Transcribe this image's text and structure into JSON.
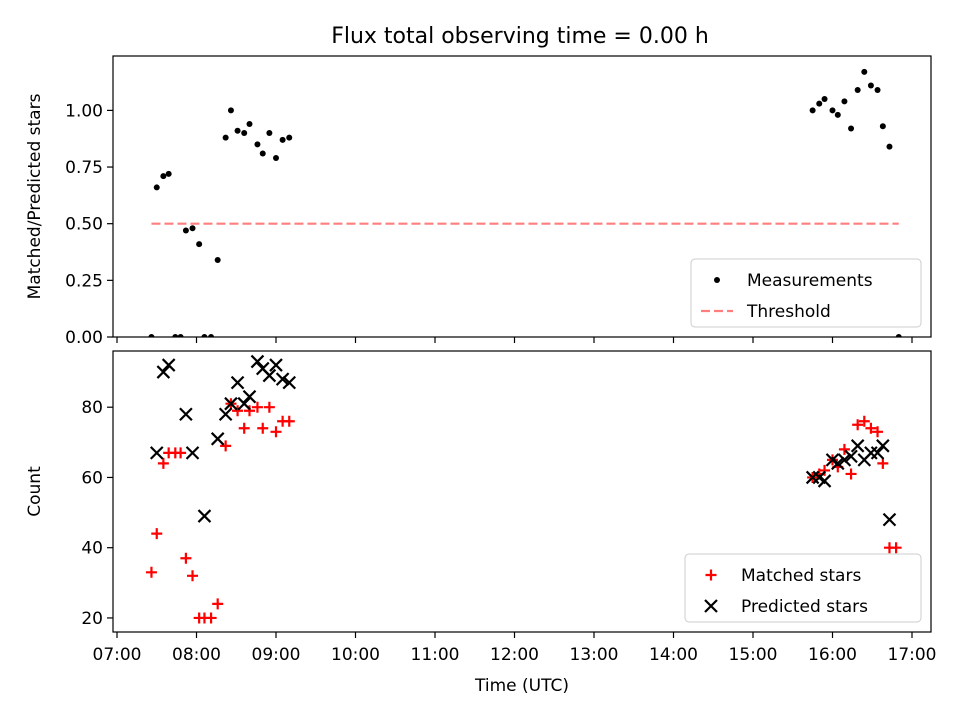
{
  "figure": {
    "title": "Flux total observing time = 0.00 h"
  },
  "chart_data": [
    {
      "type": "scatter",
      "title": "Flux total observing time = 0.00 h",
      "xlabel": "",
      "ylabel": "Matched/Predicted stars",
      "xlim": [
        "07:00",
        "17:00"
      ],
      "ylim": [
        0,
        1.24
      ],
      "yticks": [
        "0.00",
        "0.25",
        "0.50",
        "0.75",
        "1.00"
      ],
      "legend_position": "lower-right",
      "series": [
        {
          "name": "Measurements",
          "style": "dot",
          "color": "#000000",
          "points": [
            [
              "07:26",
              0.0
            ],
            [
              "07:30",
              0.66
            ],
            [
              "07:35",
              0.71
            ],
            [
              "07:39",
              0.72
            ],
            [
              "07:44",
              0.0
            ],
            [
              "07:48",
              0.0
            ],
            [
              "07:52",
              0.47
            ],
            [
              "07:57",
              0.48
            ],
            [
              "08:02",
              0.41
            ],
            [
              "08:06",
              0.0
            ],
            [
              "08:11",
              0.0
            ],
            [
              "08:16",
              0.34
            ],
            [
              "08:22",
              0.88
            ],
            [
              "08:26",
              1.0
            ],
            [
              "08:31",
              0.91
            ],
            [
              "08:36",
              0.9
            ],
            [
              "08:40",
              0.94
            ],
            [
              "08:46",
              0.85
            ],
            [
              "08:50",
              0.81
            ],
            [
              "08:55",
              0.9
            ],
            [
              "09:00",
              0.79
            ],
            [
              "09:05",
              0.87
            ],
            [
              "09:10",
              0.88
            ],
            [
              "15:45",
              1.0
            ],
            [
              "15:50",
              1.03
            ],
            [
              "15:54",
              1.05
            ],
            [
              "16:00",
              1.0
            ],
            [
              "16:04",
              0.98
            ],
            [
              "16:09",
              1.04
            ],
            [
              "16:14",
              0.92
            ],
            [
              "16:19",
              1.09
            ],
            [
              "16:24",
              1.17
            ],
            [
              "16:29",
              1.11
            ],
            [
              "16:34",
              1.09
            ],
            [
              "16:38",
              0.93
            ],
            [
              "16:43",
              0.84
            ],
            [
              "16:50",
              0.0
            ]
          ]
        },
        {
          "name": "Threshold",
          "style": "dashed-line",
          "color": "#ff7f7f",
          "points": [
            [
              "07:26",
              0.5
            ],
            [
              "16:50",
              0.5
            ]
          ]
        }
      ]
    },
    {
      "type": "scatter",
      "title": "",
      "xlabel": "Time (UTC)",
      "ylabel": "Count",
      "xlim": [
        "07:00",
        "17:00"
      ],
      "ylim": [
        16,
        96
      ],
      "yticks": [
        "20",
        "40",
        "60",
        "80"
      ],
      "xticks": [
        "07:00",
        "08:00",
        "09:00",
        "10:00",
        "11:00",
        "12:00",
        "13:00",
        "14:00",
        "15:00",
        "16:00",
        "17:00"
      ],
      "legend_position": "lower-right",
      "series": [
        {
          "name": "Matched stars",
          "style": "plus",
          "color": "#ff0000",
          "points": [
            [
              "07:26",
              33
            ],
            [
              "07:30",
              44
            ],
            [
              "07:35",
              64
            ],
            [
              "07:39",
              67
            ],
            [
              "07:44",
              67
            ],
            [
              "07:48",
              67
            ],
            [
              "07:52",
              37
            ],
            [
              "07:57",
              32
            ],
            [
              "08:02",
              20
            ],
            [
              "08:06",
              20
            ],
            [
              "08:11",
              20
            ],
            [
              "08:16",
              24
            ],
            [
              "08:22",
              69
            ],
            [
              "08:26",
              81
            ],
            [
              "08:31",
              79
            ],
            [
              "08:36",
              74
            ],
            [
              "08:40",
              79
            ],
            [
              "08:46",
              80
            ],
            [
              "08:50",
              74
            ],
            [
              "08:55",
              80
            ],
            [
              "09:00",
              73
            ],
            [
              "09:05",
              76
            ],
            [
              "09:10",
              76
            ],
            [
              "15:45",
              60
            ],
            [
              "15:50",
              61
            ],
            [
              "15:54",
              62
            ],
            [
              "16:00",
              65
            ],
            [
              "16:04",
              63
            ],
            [
              "16:09",
              68
            ],
            [
              "16:14",
              61
            ],
            [
              "16:19",
              75
            ],
            [
              "16:24",
              76
            ],
            [
              "16:29",
              74
            ],
            [
              "16:34",
              73
            ],
            [
              "16:38",
              64
            ],
            [
              "16:43",
              40
            ],
            [
              "16:48",
              40
            ]
          ]
        },
        {
          "name": "Predicted stars",
          "style": "cross",
          "color": "#000000",
          "points": [
            [
              "07:30",
              67
            ],
            [
              "07:35",
              90
            ],
            [
              "07:39",
              92
            ],
            [
              "07:52",
              78
            ],
            [
              "07:57",
              67
            ],
            [
              "08:06",
              49
            ],
            [
              "08:16",
              71
            ],
            [
              "08:22",
              78
            ],
            [
              "08:26",
              81
            ],
            [
              "08:31",
              87
            ],
            [
              "08:36",
              81
            ],
            [
              "08:40",
              83
            ],
            [
              "08:46",
              93
            ],
            [
              "08:50",
              91
            ],
            [
              "08:55",
              89
            ],
            [
              "09:00",
              92
            ],
            [
              "09:05",
              88
            ],
            [
              "09:10",
              87
            ],
            [
              "15:45",
              60
            ],
            [
              "15:50",
              60
            ],
            [
              "15:54",
              59
            ],
            [
              "16:00",
              65
            ],
            [
              "16:04",
              64
            ],
            [
              "16:09",
              65
            ],
            [
              "16:14",
              66
            ],
            [
              "16:19",
              69
            ],
            [
              "16:24",
              65
            ],
            [
              "16:29",
              67
            ],
            [
              "16:34",
              67
            ],
            [
              "16:38",
              69
            ],
            [
              "16:43",
              48
            ]
          ]
        }
      ]
    }
  ]
}
